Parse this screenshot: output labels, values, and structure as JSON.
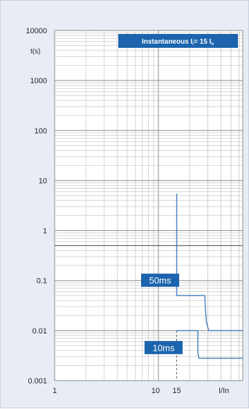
{
  "chart_data": {
    "type": "line",
    "x_scale": "log",
    "y_scale": "log",
    "xlim": [
      1,
      65
    ],
    "ylim": [
      0.001,
      10000
    ],
    "grid": true,
    "xlabel": "I/In",
    "ylabel": "t(s)",
    "x_tick_labels": [
      "1",
      "10",
      "15"
    ],
    "y_tick_labels": [
      "10000",
      "1000",
      "100",
      "10",
      "1",
      "0.1",
      "0.01",
      "0.001"
    ],
    "annotation": {
      "text": "Instantaneous I",
      "subscript_i": "i",
      "rest": "= 15 I",
      "subscript_n": "n",
      "position": "top-right",
      "bg_color": "#1c64ad",
      "text_color": "#ffffff"
    },
    "series": [
      {
        "label": "50ms",
        "color": "#4a83c2",
        "points": [
          [
            15,
            5.5
          ],
          [
            15,
            0.05
          ],
          [
            28,
            0.05
          ],
          [
            28.3,
            0.03
          ],
          [
            29,
            0.015
          ],
          [
            30.5,
            0.01
          ],
          [
            65,
            0.01
          ]
        ]
      },
      {
        "label": "10ms",
        "color": "#4a83c2",
        "points": [
          [
            15,
            0.01
          ],
          [
            24,
            0.01
          ],
          [
            24,
            0.0035
          ],
          [
            24.6,
            0.0028
          ],
          [
            65,
            0.0028
          ]
        ]
      }
    ],
    "dashed_marker_x": 15,
    "label_color": "#1c64ad"
  }
}
